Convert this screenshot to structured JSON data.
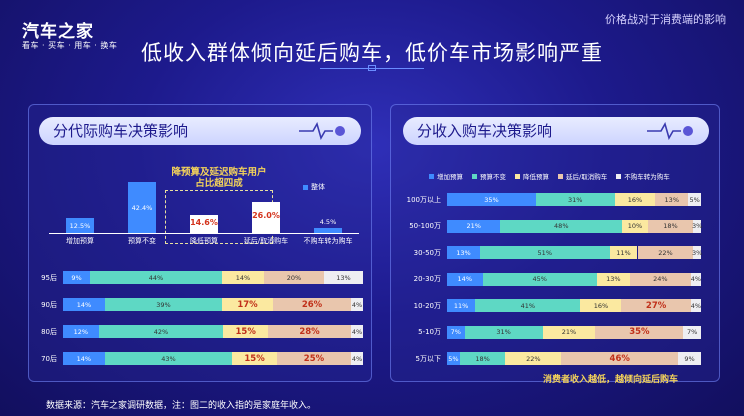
{
  "header": {
    "logo": "汽车之家",
    "slogan": "看车 · 买车 · 用车 · 换车",
    "tag": "价格战对于消费端的影响",
    "title": "低收入群体倾向延后购车，低价车市场影响严重"
  },
  "footer": "数据来源：汽车之家调研数据，注：图二的收入指的是家庭年收入。",
  "colors": {
    "increase": "#3f8bff",
    "unchanged": "#5ed8c4",
    "decrease": "#fbe9a0",
    "delay": "#e9c6ad",
    "no_buy": "#eeeef2"
  },
  "left": {
    "panel_title": "分代际购车决策影响",
    "annotation": [
      "降预算及延迟购车用户",
      "占比超四成"
    ],
    "legend_overall": "整体",
    "chart_data": {
      "type": "bar",
      "title": "",
      "categories": [
        "增加预算",
        "预算不变",
        "降低预算",
        "延后/取消购车",
        "不购车转为购车"
      ],
      "series": [
        {
          "name": "整体",
          "values": [
            12.5,
            42.4,
            14.6,
            26.0,
            4.5
          ]
        }
      ],
      "value_labels": [
        "12.5%",
        "42.4%",
        "14.6%",
        "26.0%",
        "4.5%"
      ],
      "ylim": [
        0,
        45
      ]
    },
    "stacked_chart_data": {
      "type": "bar",
      "orientation": "horizontal",
      "stacked": true,
      "categories": [
        "95后",
        "90后",
        "80后",
        "70后"
      ],
      "series": [
        {
          "key": "increase",
          "values": [
            9,
            14,
            12,
            14
          ]
        },
        {
          "key": "unchanged",
          "values": [
            44,
            39,
            42,
            43
          ]
        },
        {
          "key": "decrease",
          "values": [
            14,
            17,
            15,
            15
          ]
        },
        {
          "key": "delay",
          "values": [
            20,
            26,
            28,
            25
          ]
        },
        {
          "key": "no_buy",
          "values": [
            13,
            4,
            4,
            4
          ]
        }
      ],
      "highlight_rows": {
        "decrease": [
          1,
          2,
          3
        ],
        "delay": [
          1,
          2,
          3
        ]
      }
    }
  },
  "right": {
    "panel_title": "分收入购车决策影响",
    "bottom_note": "消费者收入越低，越倾向延后购车",
    "chart_data": {
      "type": "bar",
      "orientation": "horizontal",
      "stacked": true,
      "legend": [
        "增加预算",
        "预算不变",
        "降低预算",
        "延后/取消购车",
        "不购车转为购车"
      ],
      "legend_position": "top",
      "categories": [
        "100万以上",
        "50-100万",
        "30-50万",
        "20-30万",
        "10-20万",
        "5-10万",
        "5万以下"
      ],
      "series": [
        {
          "name": "增加预算",
          "key": "increase",
          "values": [
            35,
            21,
            13,
            14,
            11,
            7,
            5
          ]
        },
        {
          "name": "预算不变",
          "key": "unchanged",
          "values": [
            31,
            48,
            51,
            45,
            41,
            31,
            18
          ]
        },
        {
          "name": "降低预算",
          "key": "decrease",
          "values": [
            16,
            10,
            11,
            13,
            16,
            21,
            22
          ]
        },
        {
          "name": "延后/取消购车",
          "key": "delay",
          "values": [
            13,
            18,
            22,
            24,
            27,
            35,
            46
          ]
        },
        {
          "name": "不购车转为购车",
          "key": "no_buy",
          "values": [
            5,
            3,
            3,
            4,
            4,
            7,
            9
          ]
        }
      ],
      "highlight_rows": {
        "delay": [
          4,
          5,
          6
        ]
      }
    }
  }
}
